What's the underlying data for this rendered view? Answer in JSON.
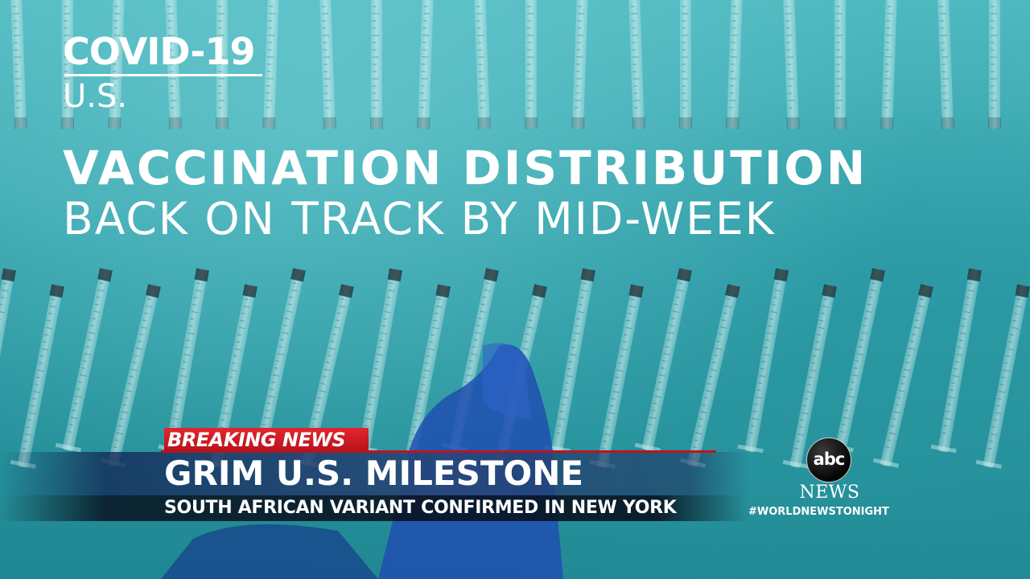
{
  "graphic": {
    "covid_title": "COVID-19",
    "covid_sub": "U.S.",
    "headline_1": "VACCINATION DISTRIBUTION",
    "headline_2": "BACK ON TRACK BY MID-WEEK"
  },
  "lower_third": {
    "breaking": "BREAKING NEWS",
    "headline": "GRIM U.S. MILESTONE",
    "subheadline": "SOUTH AFRICAN VARIANT CONFIRMED IN NEW YORK"
  },
  "branding": {
    "logo_text": "abc",
    "news_text": "NEWS",
    "hashtag": "#WORLDNEWSTONIGHT"
  },
  "colors": {
    "background_teal": "#2a9aa4",
    "breaking_red": "#c1121f",
    "bar_navy": "#28467a",
    "glove_blue": "#1f4fb0"
  },
  "icons": {
    "logo": "abc-news-logo-icon"
  }
}
